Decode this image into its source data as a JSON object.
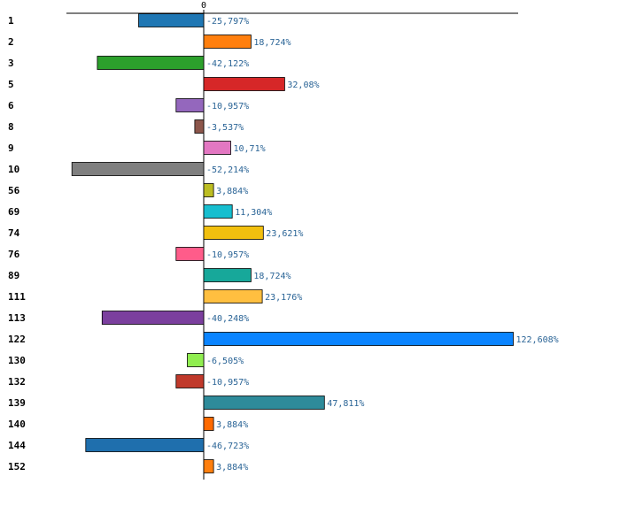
{
  "chart_data": {
    "type": "bar",
    "orientation": "horizontal",
    "title": "",
    "xlabel": "",
    "ylabel": "",
    "xlim": [
      -52.214,
      122.608
    ],
    "zero_tick_label": "0",
    "value_suffix": "%",
    "grid": false,
    "categories": [
      "1",
      "2",
      "3",
      "5",
      "6",
      "8",
      "9",
      "10",
      "56",
      "69",
      "74",
      "76",
      "89",
      "111",
      "113",
      "122",
      "130",
      "132",
      "139",
      "140",
      "144",
      "152"
    ],
    "values": [
      -25.797,
      18.724,
      -42.122,
      32.08,
      -10.957,
      -3.537,
      10.71,
      -52.214,
      3.884,
      11.304,
      23.621,
      -10.957,
      18.724,
      23.176,
      -40.248,
      122.608,
      -6.505,
      -10.957,
      47.811,
      3.884,
      -46.723,
      3.884
    ],
    "value_labels": [
      "-25,797%",
      "18,724%",
      "-42,122%",
      "32,08%",
      "-10,957%",
      "-3,537%",
      "10,71%",
      "-52,214%",
      "3,884%",
      "11,304%",
      "23,621%",
      "-10,957%",
      "18,724%",
      "23,176%",
      "-40,248%",
      "122,608%",
      "-6,505%",
      "-10,957%",
      "47,811%",
      "3,884%",
      "-46,723%",
      "3,884%"
    ],
    "colors": [
      "#1f77b4",
      "#ff7f0e",
      "#2ca02c",
      "#d62728",
      "#9467bd",
      "#8c564b",
      "#e377c2",
      "#7f7f7f",
      "#bcbd22",
      "#17becf",
      "#f2c00f",
      "#ff5c8a",
      "#17a89a",
      "#ffbf40",
      "#7b3f9e",
      "#0a84ff",
      "#90ee50",
      "#c0392b",
      "#2e8b9a",
      "#ff6a00",
      "#1f6fad",
      "#ff7f0e"
    ]
  }
}
